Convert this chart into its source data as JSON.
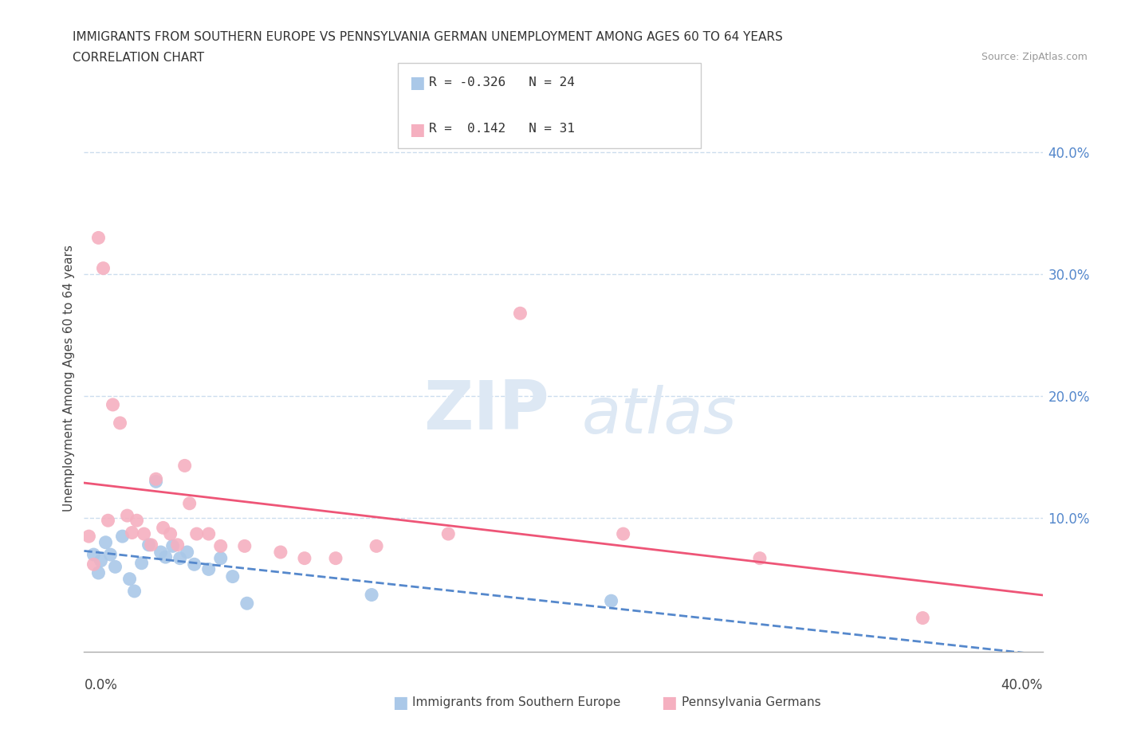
{
  "title_line1": "IMMIGRANTS FROM SOUTHERN EUROPE VS PENNSYLVANIA GERMAN UNEMPLOYMENT AMONG AGES 60 TO 64 YEARS",
  "title_line2": "CORRELATION CHART",
  "source_text": "Source: ZipAtlas.com",
  "ylabel": "Unemployment Among Ages 60 to 64 years",
  "r_blue": -0.326,
  "n_blue": 24,
  "r_pink": 0.142,
  "n_pink": 31,
  "blue_color": "#aac8e8",
  "pink_color": "#f5b0c0",
  "blue_line_color": "#5588cc",
  "pink_line_color": "#ee5577",
  "grid_color": "#ccddee",
  "right_tick_color": "#5588cc",
  "blue_scatter": [
    [
      0.004,
      0.07
    ],
    [
      0.006,
      0.055
    ],
    [
      0.007,
      0.065
    ],
    [
      0.009,
      0.08
    ],
    [
      0.011,
      0.07
    ],
    [
      0.013,
      0.06
    ],
    [
      0.016,
      0.085
    ],
    [
      0.019,
      0.05
    ],
    [
      0.021,
      0.04
    ],
    [
      0.024,
      0.063
    ],
    [
      0.027,
      0.078
    ],
    [
      0.03,
      0.13
    ],
    [
      0.032,
      0.072
    ],
    [
      0.034,
      0.068
    ],
    [
      0.037,
      0.077
    ],
    [
      0.04,
      0.067
    ],
    [
      0.043,
      0.072
    ],
    [
      0.046,
      0.062
    ],
    [
      0.052,
      0.058
    ],
    [
      0.057,
      0.067
    ],
    [
      0.062,
      0.052
    ],
    [
      0.068,
      0.03
    ],
    [
      0.12,
      0.037
    ],
    [
      0.22,
      0.032
    ]
  ],
  "pink_scatter": [
    [
      0.002,
      0.085
    ],
    [
      0.004,
      0.062
    ],
    [
      0.006,
      0.33
    ],
    [
      0.008,
      0.305
    ],
    [
      0.01,
      0.098
    ],
    [
      0.012,
      0.193
    ],
    [
      0.015,
      0.178
    ],
    [
      0.018,
      0.102
    ],
    [
      0.02,
      0.088
    ],
    [
      0.022,
      0.098
    ],
    [
      0.025,
      0.087
    ],
    [
      0.028,
      0.078
    ],
    [
      0.03,
      0.132
    ],
    [
      0.033,
      0.092
    ],
    [
      0.036,
      0.087
    ],
    [
      0.039,
      0.078
    ],
    [
      0.042,
      0.143
    ],
    [
      0.044,
      0.112
    ],
    [
      0.047,
      0.087
    ],
    [
      0.052,
      0.087
    ],
    [
      0.057,
      0.077
    ],
    [
      0.067,
      0.077
    ],
    [
      0.082,
      0.072
    ],
    [
      0.092,
      0.067
    ],
    [
      0.105,
      0.067
    ],
    [
      0.122,
      0.077
    ],
    [
      0.152,
      0.087
    ],
    [
      0.182,
      0.268
    ],
    [
      0.225,
      0.087
    ],
    [
      0.282,
      0.067
    ],
    [
      0.35,
      0.018
    ]
  ],
  "xmin": 0.0,
  "xmax": 0.4,
  "ymin": -0.01,
  "ymax": 0.44,
  "yticks": [
    0.1,
    0.2,
    0.3,
    0.4
  ],
  "ytick_labels": [
    "10.0%",
    "20.0%",
    "30.0%",
    "40.0%"
  ],
  "watermark_color": "#dde8f4",
  "background_color": "#ffffff"
}
